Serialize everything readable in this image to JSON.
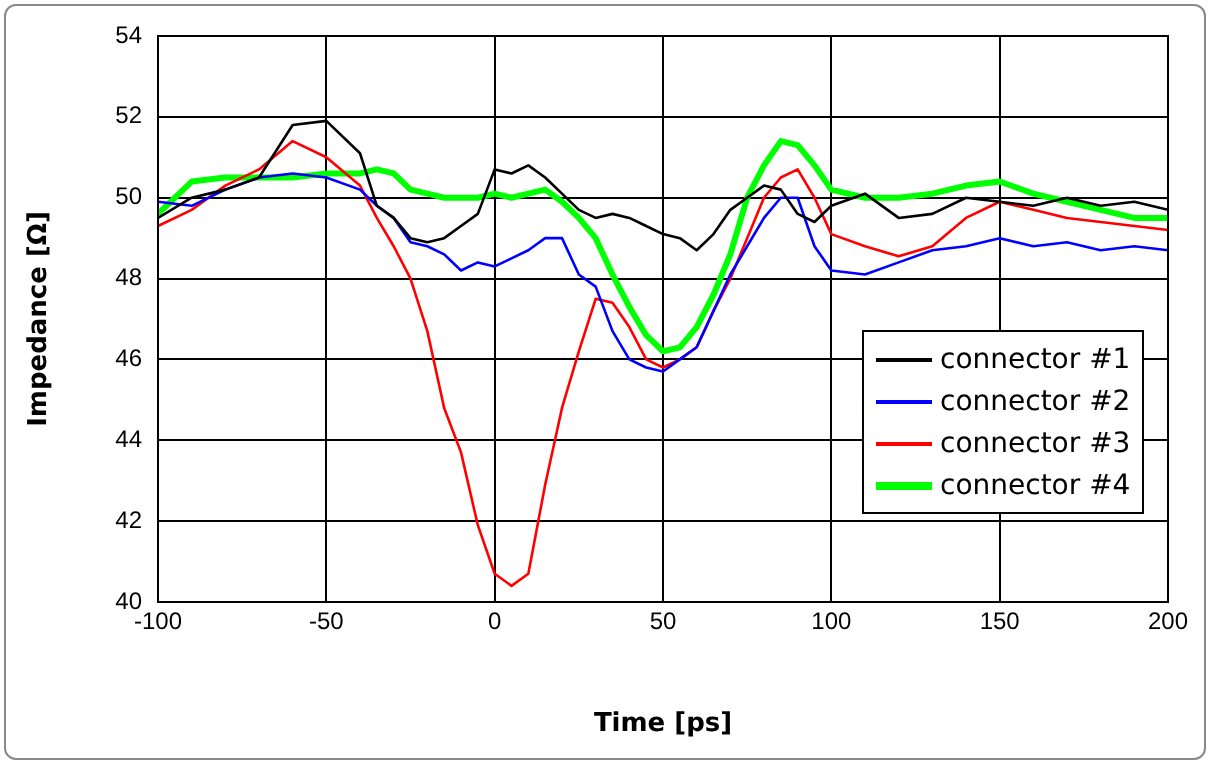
{
  "chart_data": {
    "type": "line",
    "xlabel": "Time [ps]",
    "ylabel": "Impedance [Ω]",
    "x": [
      -100,
      -90,
      -80,
      -70,
      -60,
      -50,
      -40,
      -35,
      -30,
      -25,
      -20,
      -15,
      -10,
      -5,
      0,
      5,
      10,
      15,
      20,
      25,
      30,
      35,
      40,
      45,
      50,
      55,
      60,
      65,
      70,
      75,
      80,
      85,
      90,
      95,
      100,
      110,
      120,
      130,
      140,
      150,
      160,
      170,
      180,
      190,
      200
    ],
    "xlim": [
      -100,
      200
    ],
    "xticks": [
      -100,
      -50,
      0,
      50,
      100,
      150,
      200
    ],
    "ylim": [
      40,
      54
    ],
    "yticks": [
      40,
      42,
      44,
      46,
      48,
      50,
      52,
      54
    ],
    "grid": true,
    "legend": "right",
    "marker": "none",
    "line_style": "solid",
    "series": [
      {
        "name": "connector #1",
        "color": "#000000",
        "values": [
          49.5,
          50.0,
          50.2,
          50.5,
          51.8,
          51.9,
          51.1,
          49.8,
          49.5,
          49.0,
          48.9,
          49.0,
          49.3,
          49.6,
          50.7,
          50.6,
          50.8,
          50.5,
          50.1,
          49.7,
          49.5,
          49.6,
          49.5,
          49.3,
          49.1,
          49.0,
          48.7,
          49.1,
          49.7,
          50.0,
          50.3,
          50.2,
          49.6,
          49.4,
          49.8,
          50.1,
          49.5,
          49.6,
          50.0,
          49.9,
          49.8,
          50.0,
          49.8,
          49.9,
          49.7
        ]
      },
      {
        "name": "connector #2",
        "color": "#0000ff",
        "values": [
          49.9,
          49.8,
          50.2,
          50.5,
          50.6,
          50.5,
          50.2,
          49.8,
          49.5,
          48.9,
          48.8,
          48.6,
          48.2,
          48.4,
          48.3,
          48.5,
          48.7,
          49.0,
          49.0,
          48.1,
          47.8,
          46.7,
          46.0,
          45.8,
          45.7,
          46.0,
          46.3,
          47.2,
          48.1,
          48.8,
          49.5,
          50.0,
          50.0,
          48.8,
          48.2,
          48.1,
          48.4,
          48.7,
          48.8,
          49.0,
          48.8,
          48.9,
          48.7,
          48.8,
          48.7
        ]
      },
      {
        "name": "connector #3",
        "color": "#ff0000",
        "values": [
          49.3,
          49.7,
          50.3,
          50.7,
          51.4,
          51.0,
          50.3,
          49.5,
          48.8,
          48.0,
          46.7,
          44.8,
          43.7,
          41.9,
          40.7,
          40.4,
          40.7,
          42.9,
          44.8,
          46.2,
          47.5,
          47.4,
          46.8,
          46.0,
          45.8,
          46.0,
          46.3,
          47.2,
          48.0,
          49.0,
          50.0,
          50.5,
          50.7,
          50.0,
          49.1,
          48.8,
          48.55,
          48.8,
          49.5,
          49.9,
          49.7,
          49.5,
          49.4,
          49.3,
          49.2
        ]
      },
      {
        "name": "connector #4",
        "color": "#00ff00",
        "values": [
          49.6,
          50.4,
          50.5,
          50.5,
          50.5,
          50.6,
          50.6,
          50.7,
          50.6,
          50.2,
          50.1,
          50.0,
          50.0,
          50.0,
          50.1,
          50.0,
          50.1,
          50.2,
          49.9,
          49.5,
          49.0,
          48.1,
          47.3,
          46.6,
          46.2,
          46.3,
          46.8,
          47.6,
          48.6,
          50.0,
          50.8,
          51.4,
          51.3,
          50.8,
          50.2,
          50.0,
          50.0,
          50.1,
          50.3,
          50.4,
          50.1,
          49.9,
          49.7,
          49.5,
          49.5
        ]
      }
    ]
  }
}
